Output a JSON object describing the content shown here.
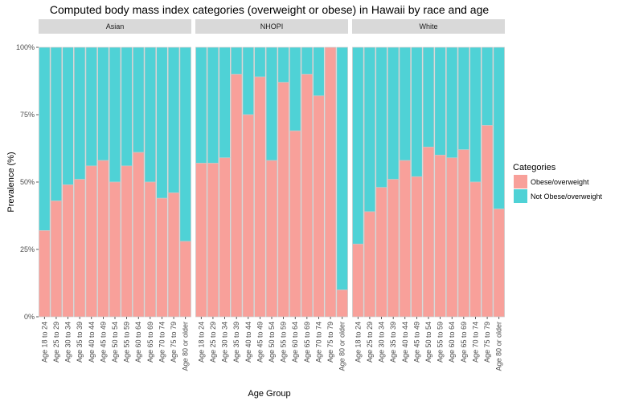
{
  "colors": {
    "obese": "#F8A09A",
    "not_obese": "#4FD2D6",
    "strip_bg": "#D9D9D9",
    "bar_border": "#C8C8C8"
  },
  "chart_data": {
    "type": "bar",
    "stacked": true,
    "title": "Computed body mass index categories (overweight or obese) in Hawaii by race and age",
    "xlabel": "Age Group",
    "ylabel": "Prevalence (%)",
    "ylim": [
      0,
      100
    ],
    "y_ticks": [
      "0%",
      "25%",
      "50%",
      "75%",
      "100%"
    ],
    "grid": false,
    "legend_position": "right",
    "legend_title": "Categories",
    "legend_entries": [
      "Obese/overweight",
      "Not Obese/overweight"
    ],
    "categories": [
      "Age 18 to 24",
      "Age 25 to 29",
      "Age 30 to 34",
      "Age 35 to 39",
      "Age 40 to 44",
      "Age 45 to 49",
      "Age 50 to 54",
      "Age 55 to 59",
      "Age 60 to 64",
      "Age 65 to 69",
      "Age 70 to 74",
      "Age 75 to 79",
      "Age 80 or older"
    ],
    "facets": [
      {
        "name": "Asian",
        "obese": [
          32,
          43,
          49,
          51,
          56,
          58,
          50,
          56,
          61,
          50,
          44,
          46,
          28
        ]
      },
      {
        "name": "NHOPI",
        "obese": [
          57,
          57,
          59,
          90,
          75,
          89,
          58,
          87,
          69,
          90,
          82,
          100,
          10
        ]
      },
      {
        "name": "White",
        "obese": [
          27,
          39,
          48,
          51,
          58,
          52,
          63,
          60,
          59,
          62,
          50,
          71,
          40
        ]
      }
    ]
  }
}
